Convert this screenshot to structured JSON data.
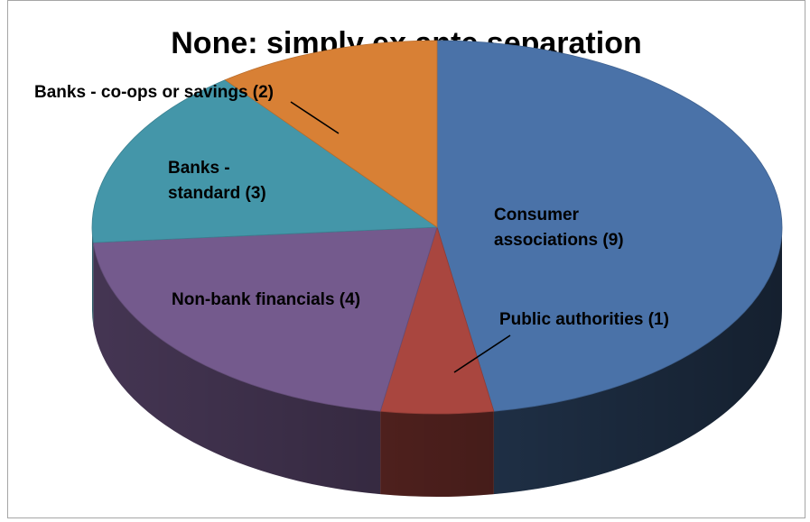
{
  "chart_data": {
    "type": "pie",
    "title": "None: simply ex ante separation",
    "slices": [
      {
        "label_lines": [
          "Consumer",
          "associations (9)"
        ],
        "value": 9,
        "color": "#4a72a8"
      },
      {
        "label_lines": [
          "Public authorities (1)"
        ],
        "value": 1,
        "color": "#a9463f"
      },
      {
        "label_lines": [
          "Non-bank financials (4)"
        ],
        "value": 4,
        "color": "#745a8d"
      },
      {
        "label_lines": [
          "Banks -",
          "standard (3)"
        ],
        "value": 3,
        "color": "#4496a9"
      },
      {
        "label_lines": [
          "Banks - co-ops or savings (2)"
        ],
        "value": 2,
        "color": "#d88035"
      }
    ],
    "start_angle_deg": -90,
    "direction": "clockwise",
    "style": "3d"
  }
}
